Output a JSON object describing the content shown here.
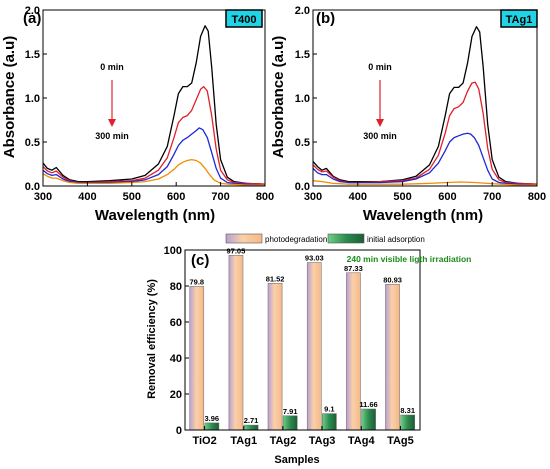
{
  "chart_data": [
    {
      "type": "line",
      "panel_label": "(a)",
      "sample_tag": "T400",
      "xlabel": "Wavelength (nm)",
      "ylabel": "Absorbance (a.u)",
      "xlim": [
        300,
        800
      ],
      "ylim": [
        0,
        2.0
      ],
      "xticks": [
        "300",
        "400",
        "500",
        "600",
        "700",
        "800"
      ],
      "yticks": [
        "0.0",
        "0.5",
        "1.0",
        "1.5",
        "2.0"
      ],
      "time_start": "0 min",
      "time_end": "300 min",
      "series_colors": [
        "#000000",
        "#e0202a",
        "#1d28d6",
        "#f28c00"
      ],
      "series": [
        {
          "values": [
            [
              300,
              0.26
            ],
            [
              310,
              0.2
            ],
            [
              320,
              0.18
            ],
            [
              330,
              0.21
            ],
            [
              345,
              0.12
            ],
            [
              360,
              0.07
            ],
            [
              380,
              0.05
            ],
            [
              400,
              0.05
            ],
            [
              450,
              0.06
            ],
            [
              500,
              0.08
            ],
            [
              530,
              0.12
            ],
            [
              560,
              0.25
            ],
            [
              580,
              0.45
            ],
            [
              595,
              0.8
            ],
            [
              605,
              1.05
            ],
            [
              615,
              1.13
            ],
            [
              625,
              1.13
            ],
            [
              635,
              1.17
            ],
            [
              645,
              1.4
            ],
            [
              655,
              1.7
            ],
            [
              665,
              1.82
            ],
            [
              672,
              1.76
            ],
            [
              680,
              1.35
            ],
            [
              690,
              0.7
            ],
            [
              700,
              0.3
            ],
            [
              715,
              0.1
            ],
            [
              730,
              0.05
            ],
            [
              760,
              0.03
            ],
            [
              800,
              0.02
            ]
          ]
        },
        {
          "values": [
            [
              300,
              0.22
            ],
            [
              310,
              0.17
            ],
            [
              320,
              0.15
            ],
            [
              330,
              0.17
            ],
            [
              345,
              0.1
            ],
            [
              360,
              0.06
            ],
            [
              380,
              0.04
            ],
            [
              400,
              0.04
            ],
            [
              450,
              0.05
            ],
            [
              500,
              0.06
            ],
            [
              530,
              0.09
            ],
            [
              560,
              0.18
            ],
            [
              580,
              0.32
            ],
            [
              595,
              0.55
            ],
            [
              605,
              0.72
            ],
            [
              615,
              0.78
            ],
            [
              625,
              0.8
            ],
            [
              635,
              0.86
            ],
            [
              645,
              0.98
            ],
            [
              655,
              1.1
            ],
            [
              662,
              1.13
            ],
            [
              670,
              1.08
            ],
            [
              680,
              0.8
            ],
            [
              690,
              0.42
            ],
            [
              700,
              0.18
            ],
            [
              715,
              0.07
            ],
            [
              730,
              0.04
            ],
            [
              760,
              0.03
            ],
            [
              800,
              0.02
            ]
          ]
        },
        {
          "values": [
            [
              300,
              0.18
            ],
            [
              310,
              0.14
            ],
            [
              320,
              0.12
            ],
            [
              330,
              0.13
            ],
            [
              345,
              0.08
            ],
            [
              360,
              0.05
            ],
            [
              380,
              0.04
            ],
            [
              400,
              0.04
            ],
            [
              450,
              0.04
            ],
            [
              500,
              0.05
            ],
            [
              530,
              0.07
            ],
            [
              560,
              0.13
            ],
            [
              580,
              0.22
            ],
            [
              595,
              0.36
            ],
            [
              605,
              0.46
            ],
            [
              615,
              0.52
            ],
            [
              625,
              0.55
            ],
            [
              635,
              0.59
            ],
            [
              645,
              0.63
            ],
            [
              652,
              0.66
            ],
            [
              660,
              0.64
            ],
            [
              670,
              0.55
            ],
            [
              680,
              0.38
            ],
            [
              690,
              0.2
            ],
            [
              700,
              0.09
            ],
            [
              715,
              0.04
            ],
            [
              730,
              0.03
            ],
            [
              760,
              0.02
            ],
            [
              800,
              0.01
            ]
          ]
        },
        {
          "values": [
            [
              300,
              0.14
            ],
            [
              310,
              0.11
            ],
            [
              320,
              0.09
            ],
            [
              330,
              0.09
            ],
            [
              345,
              0.06
            ],
            [
              360,
              0.04
            ],
            [
              380,
              0.03
            ],
            [
              400,
              0.03
            ],
            [
              450,
              0.03
            ],
            [
              500,
              0.04
            ],
            [
              530,
              0.05
            ],
            [
              560,
              0.08
            ],
            [
              580,
              0.13
            ],
            [
              595,
              0.19
            ],
            [
              605,
              0.24
            ],
            [
              615,
              0.27
            ],
            [
              625,
              0.29
            ],
            [
              635,
              0.3
            ],
            [
              645,
              0.29
            ],
            [
              655,
              0.26
            ],
            [
              665,
              0.2
            ],
            [
              675,
              0.13
            ],
            [
              685,
              0.07
            ],
            [
              700,
              0.03
            ],
            [
              720,
              0.02
            ],
            [
              760,
              0.01
            ],
            [
              800,
              0.01
            ]
          ]
        }
      ]
    },
    {
      "type": "line",
      "panel_label": "(b)",
      "sample_tag": "TAg1",
      "xlabel": "Wavelength (nm)",
      "ylabel": "Absorbance (a.u)",
      "xlim": [
        300,
        800
      ],
      "ylim": [
        0,
        2.0
      ],
      "xticks": [
        "300",
        "400",
        "500",
        "600",
        "700",
        "800"
      ],
      "yticks": [
        "0.0",
        "0.5",
        "1.0",
        "1.5",
        "2.0"
      ],
      "time_start": "0 min",
      "time_end": "300 min",
      "series_colors": [
        "#000000",
        "#e0202a",
        "#1d28d6",
        "#f28c00"
      ],
      "series": [
        {
          "values": [
            [
              300,
              0.28
            ],
            [
              310,
              0.22
            ],
            [
              320,
              0.18
            ],
            [
              330,
              0.2
            ],
            [
              345,
              0.11
            ],
            [
              360,
              0.07
            ],
            [
              380,
              0.05
            ],
            [
              400,
              0.05
            ],
            [
              450,
              0.05
            ],
            [
              500,
              0.07
            ],
            [
              530,
              0.11
            ],
            [
              560,
              0.24
            ],
            [
              580,
              0.45
            ],
            [
              595,
              0.8
            ],
            [
              605,
              1.05
            ],
            [
              615,
              1.12
            ],
            [
              625,
              1.12
            ],
            [
              635,
              1.17
            ],
            [
              645,
              1.4
            ],
            [
              655,
              1.7
            ],
            [
              665,
              1.81
            ],
            [
              672,
              1.75
            ],
            [
              680,
              1.35
            ],
            [
              690,
              0.7
            ],
            [
              700,
              0.3
            ],
            [
              715,
              0.1
            ],
            [
              730,
              0.05
            ],
            [
              760,
              0.03
            ],
            [
              800,
              0.02
            ]
          ]
        },
        {
          "values": [
            [
              300,
              0.24
            ],
            [
              310,
              0.19
            ],
            [
              320,
              0.16
            ],
            [
              330,
              0.17
            ],
            [
              345,
              0.1
            ],
            [
              360,
              0.06
            ],
            [
              380,
              0.04
            ],
            [
              400,
              0.04
            ],
            [
              450,
              0.05
            ],
            [
              500,
              0.06
            ],
            [
              530,
              0.09
            ],
            [
              560,
              0.19
            ],
            [
              580,
              0.35
            ],
            [
              595,
              0.6
            ],
            [
              605,
              0.8
            ],
            [
              615,
              0.88
            ],
            [
              625,
              0.9
            ],
            [
              635,
              0.95
            ],
            [
              645,
              1.08
            ],
            [
              655,
              1.17
            ],
            [
              662,
              1.18
            ],
            [
              670,
              1.1
            ],
            [
              680,
              0.82
            ],
            [
              690,
              0.43
            ],
            [
              700,
              0.19
            ],
            [
              715,
              0.07
            ],
            [
              730,
              0.04
            ],
            [
              760,
              0.03
            ],
            [
              800,
              0.02
            ]
          ]
        },
        {
          "values": [
            [
              300,
              0.2
            ],
            [
              310,
              0.15
            ],
            [
              320,
              0.13
            ],
            [
              330,
              0.13
            ],
            [
              345,
              0.08
            ],
            [
              360,
              0.05
            ],
            [
              380,
              0.04
            ],
            [
              400,
              0.04
            ],
            [
              450,
              0.04
            ],
            [
              500,
              0.05
            ],
            [
              530,
              0.08
            ],
            [
              560,
              0.15
            ],
            [
              580,
              0.26
            ],
            [
              595,
              0.4
            ],
            [
              605,
              0.5
            ],
            [
              615,
              0.55
            ],
            [
              625,
              0.57
            ],
            [
              635,
              0.59
            ],
            [
              645,
              0.6
            ],
            [
              652,
              0.59
            ],
            [
              660,
              0.55
            ],
            [
              670,
              0.46
            ],
            [
              680,
              0.32
            ],
            [
              690,
              0.18
            ],
            [
              700,
              0.08
            ],
            [
              715,
              0.04
            ],
            [
              730,
              0.03
            ],
            [
              760,
              0.02
            ],
            [
              800,
              0.01
            ]
          ]
        },
        {
          "values": [
            [
              300,
              0.06
            ],
            [
              320,
              0.05
            ],
            [
              345,
              0.03
            ],
            [
              380,
              0.02
            ],
            [
              450,
              0.02
            ],
            [
              500,
              0.02
            ],
            [
              560,
              0.03
            ],
            [
              600,
              0.04
            ],
            [
              630,
              0.045
            ],
            [
              660,
              0.04
            ],
            [
              690,
              0.03
            ],
            [
              720,
              0.02
            ],
            [
              760,
              0.01
            ],
            [
              800,
              0.01
            ]
          ]
        }
      ]
    },
    {
      "type": "bar",
      "panel_label": "(c)",
      "xlabel": "Samples",
      "ylabel": "Removal efficiency (%)",
      "ylim": [
        0,
        100
      ],
      "yticks": [
        "0",
        "20",
        "40",
        "60",
        "80",
        "100"
      ],
      "categories": [
        "TiO2",
        "TAg1",
        "TAg2",
        "TAg3",
        "TAg4",
        "TAg5"
      ],
      "annotation": "240 min visible ligth irradiation",
      "legend_position": "top",
      "series_colors": [
        "#f7c59a",
        "#3f9a5c"
      ],
      "series": [
        {
          "name": "photodegradation;",
          "values": [
            79.8,
            97.05,
            81.52,
            93.03,
            87.33,
            80.93
          ],
          "labels": [
            "79.8",
            "97.05",
            "81.52",
            "93.03",
            "87.33",
            "80.93"
          ]
        },
        {
          "name": "initial adsorption",
          "values": [
            3.96,
            2.71,
            7.91,
            9.1,
            11.66,
            8.31
          ],
          "labels": [
            "3.96",
            "2.71",
            "7.91",
            "9.1",
            "11.66",
            "8.31"
          ]
        }
      ]
    }
  ]
}
